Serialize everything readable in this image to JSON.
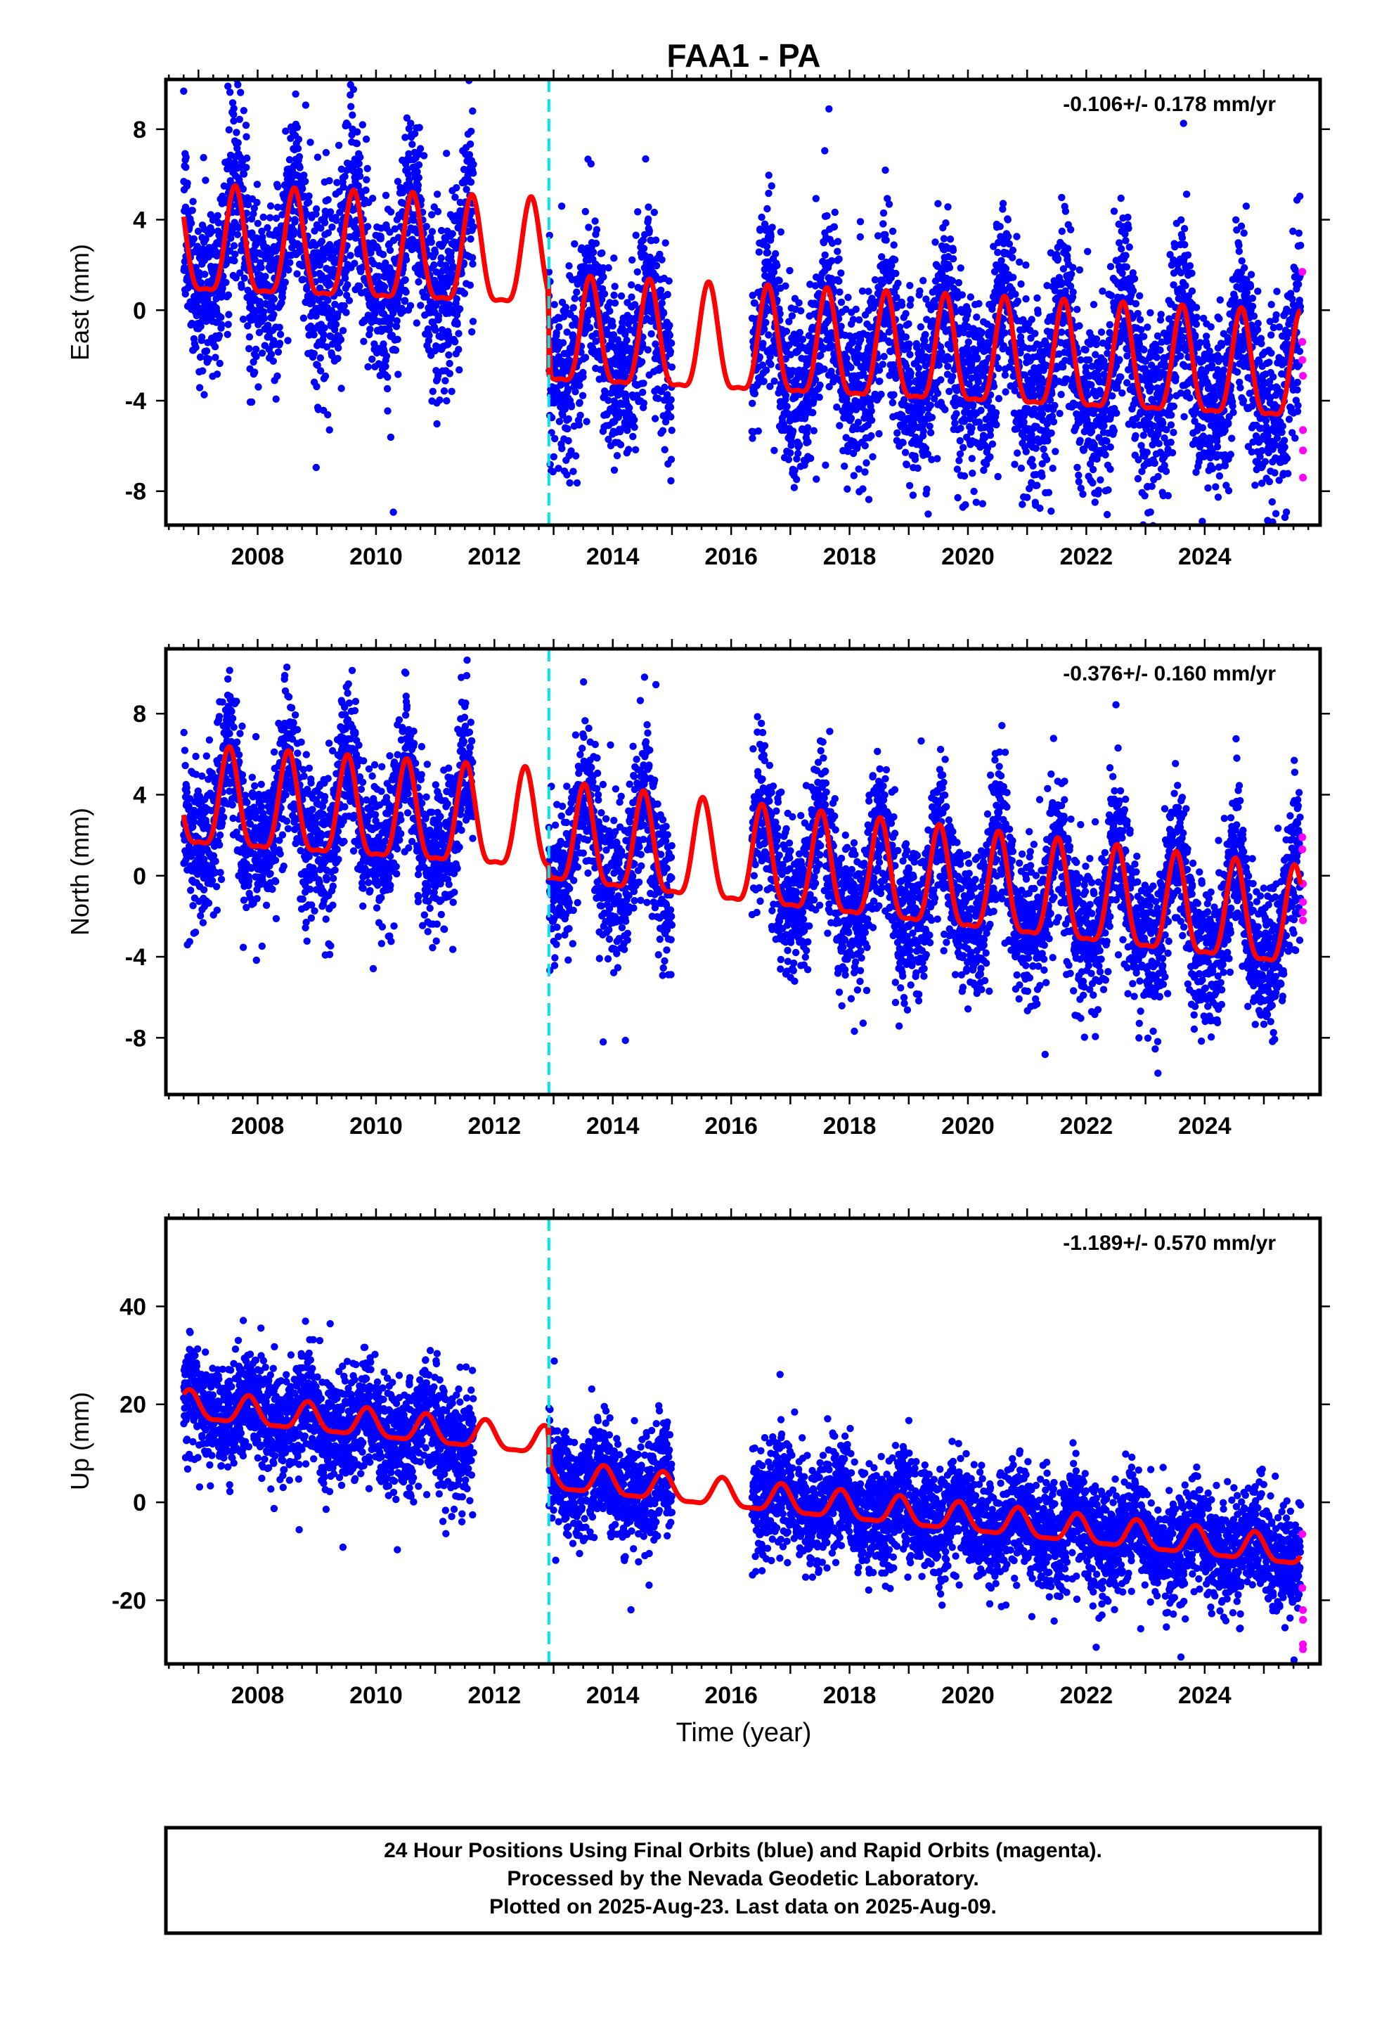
{
  "title": "FAA1 - PA",
  "x_label": "Time (year)",
  "footer": {
    "line1": "24 Hour Positions Using Final Orbits (blue) and Rapid Orbits (magenta).",
    "line2": "Processed by the Nevada Geodetic Laboratory.",
    "line3": "Plotted on 2025-Aug-23. Last data on 2025-Aug-09."
  },
  "colors": {
    "final": "#0000ff",
    "rapid": "#ff00ff",
    "model": "#ff0000",
    "event": "#00e5ee"
  },
  "chart_data": [
    {
      "type": "scatter",
      "ylabel": "East (mm)",
      "rate": "-0.106+/- 0.178 mm/yr",
      "xlim": [
        2006.45,
        2025.95
      ],
      "ylim": [
        -9.5,
        10.2
      ],
      "yticks": [
        -8,
        -4,
        0,
        4,
        8
      ],
      "xticks": [
        2008,
        2010,
        2012,
        2014,
        2016,
        2018,
        2020,
        2022,
        2024
      ],
      "event_line_x": 2012.92,
      "series": [
        {
          "role": "final",
          "gaps": [
            [
              2011.65,
              2012.92
            ],
            [
              2015.0,
              2016.35
            ]
          ],
          "model": {
            "trend": [
              [
                2006.75,
                2.6
              ],
              [
                2012.9,
                2.0
              ],
              [
                2012.95,
                -1.4
              ],
              [
                2025.6,
                -3.0
              ]
            ],
            "amplitude": 2.3,
            "phase": 0.62
          },
          "noise": 2.0,
          "outlier_rate": 0.03
        },
        {
          "role": "rapid",
          "x": [
            2025.65,
            2025.65,
            2025.65,
            2025.66,
            2025.66,
            2025.66,
            2025.66
          ],
          "values": [
            1.7,
            -1.4,
            -2.2,
            -2.9,
            -5.3,
            -6.2,
            -7.4
          ]
        }
      ]
    },
    {
      "type": "scatter",
      "ylabel": "North (mm)",
      "rate": "-0.376+/- 0.160 mm/yr",
      "xlim": [
        2006.45,
        2025.95
      ],
      "ylim": [
        -10.8,
        11.2
      ],
      "yticks": [
        -8,
        -4,
        0,
        4,
        8
      ],
      "xticks": [
        2008,
        2010,
        2012,
        2014,
        2016,
        2018,
        2020,
        2022,
        2024
      ],
      "event_line_x": 2012.92,
      "series": [
        {
          "role": "final",
          "gaps": [
            [
              2011.65,
              2012.92
            ],
            [
              2015.0,
              2016.35
            ]
          ],
          "model": {
            "trend": [
              [
                2006.75,
                3.4
              ],
              [
                2012.9,
                2.2
              ],
              [
                2012.95,
                1.6
              ],
              [
                2025.6,
                -2.6
              ]
            ],
            "amplitude": 2.4,
            "phase": 0.52
          },
          "noise": 1.8,
          "outlier_rate": 0.03
        },
        {
          "role": "rapid",
          "x": [
            2025.65,
            2025.65,
            2025.66,
            2025.66,
            2025.66,
            2025.66
          ],
          "values": [
            1.9,
            1.3,
            -0.4,
            -1.3,
            -1.8,
            -2.2
          ]
        }
      ]
    },
    {
      "type": "scatter",
      "ylabel": "Up (mm)",
      "rate": "-1.189+/- 0.570 mm/yr",
      "xlim": [
        2006.45,
        2025.95
      ],
      "ylim": [
        -33,
        58
      ],
      "yticks": [
        -20,
        0,
        20,
        40
      ],
      "xticks": [
        2008,
        2010,
        2012,
        2014,
        2016,
        2018,
        2020,
        2022,
        2024
      ],
      "event_line_x": 2012.92,
      "series": [
        {
          "role": "final",
          "gaps": [
            [
              2011.65,
              2012.92
            ],
            [
              2015.0,
              2016.35
            ]
          ],
          "model": {
            "trend": [
              [
                2006.75,
                19.5
              ],
              [
                2012.9,
                12.0
              ],
              [
                2012.95,
                5.0
              ],
              [
                2025.6,
                -10.5
              ]
            ],
            "amplitude": 2.8,
            "phase": 0.85
          },
          "noise": 5.5,
          "outlier_rate": 0.02
        },
        {
          "role": "rapid",
          "x": [
            2025.65,
            2025.65,
            2025.66,
            2025.66,
            2025.66,
            2025.66
          ],
          "values": [
            -6.5,
            -17.5,
            -22,
            -24,
            -29,
            -30
          ]
        }
      ]
    }
  ]
}
